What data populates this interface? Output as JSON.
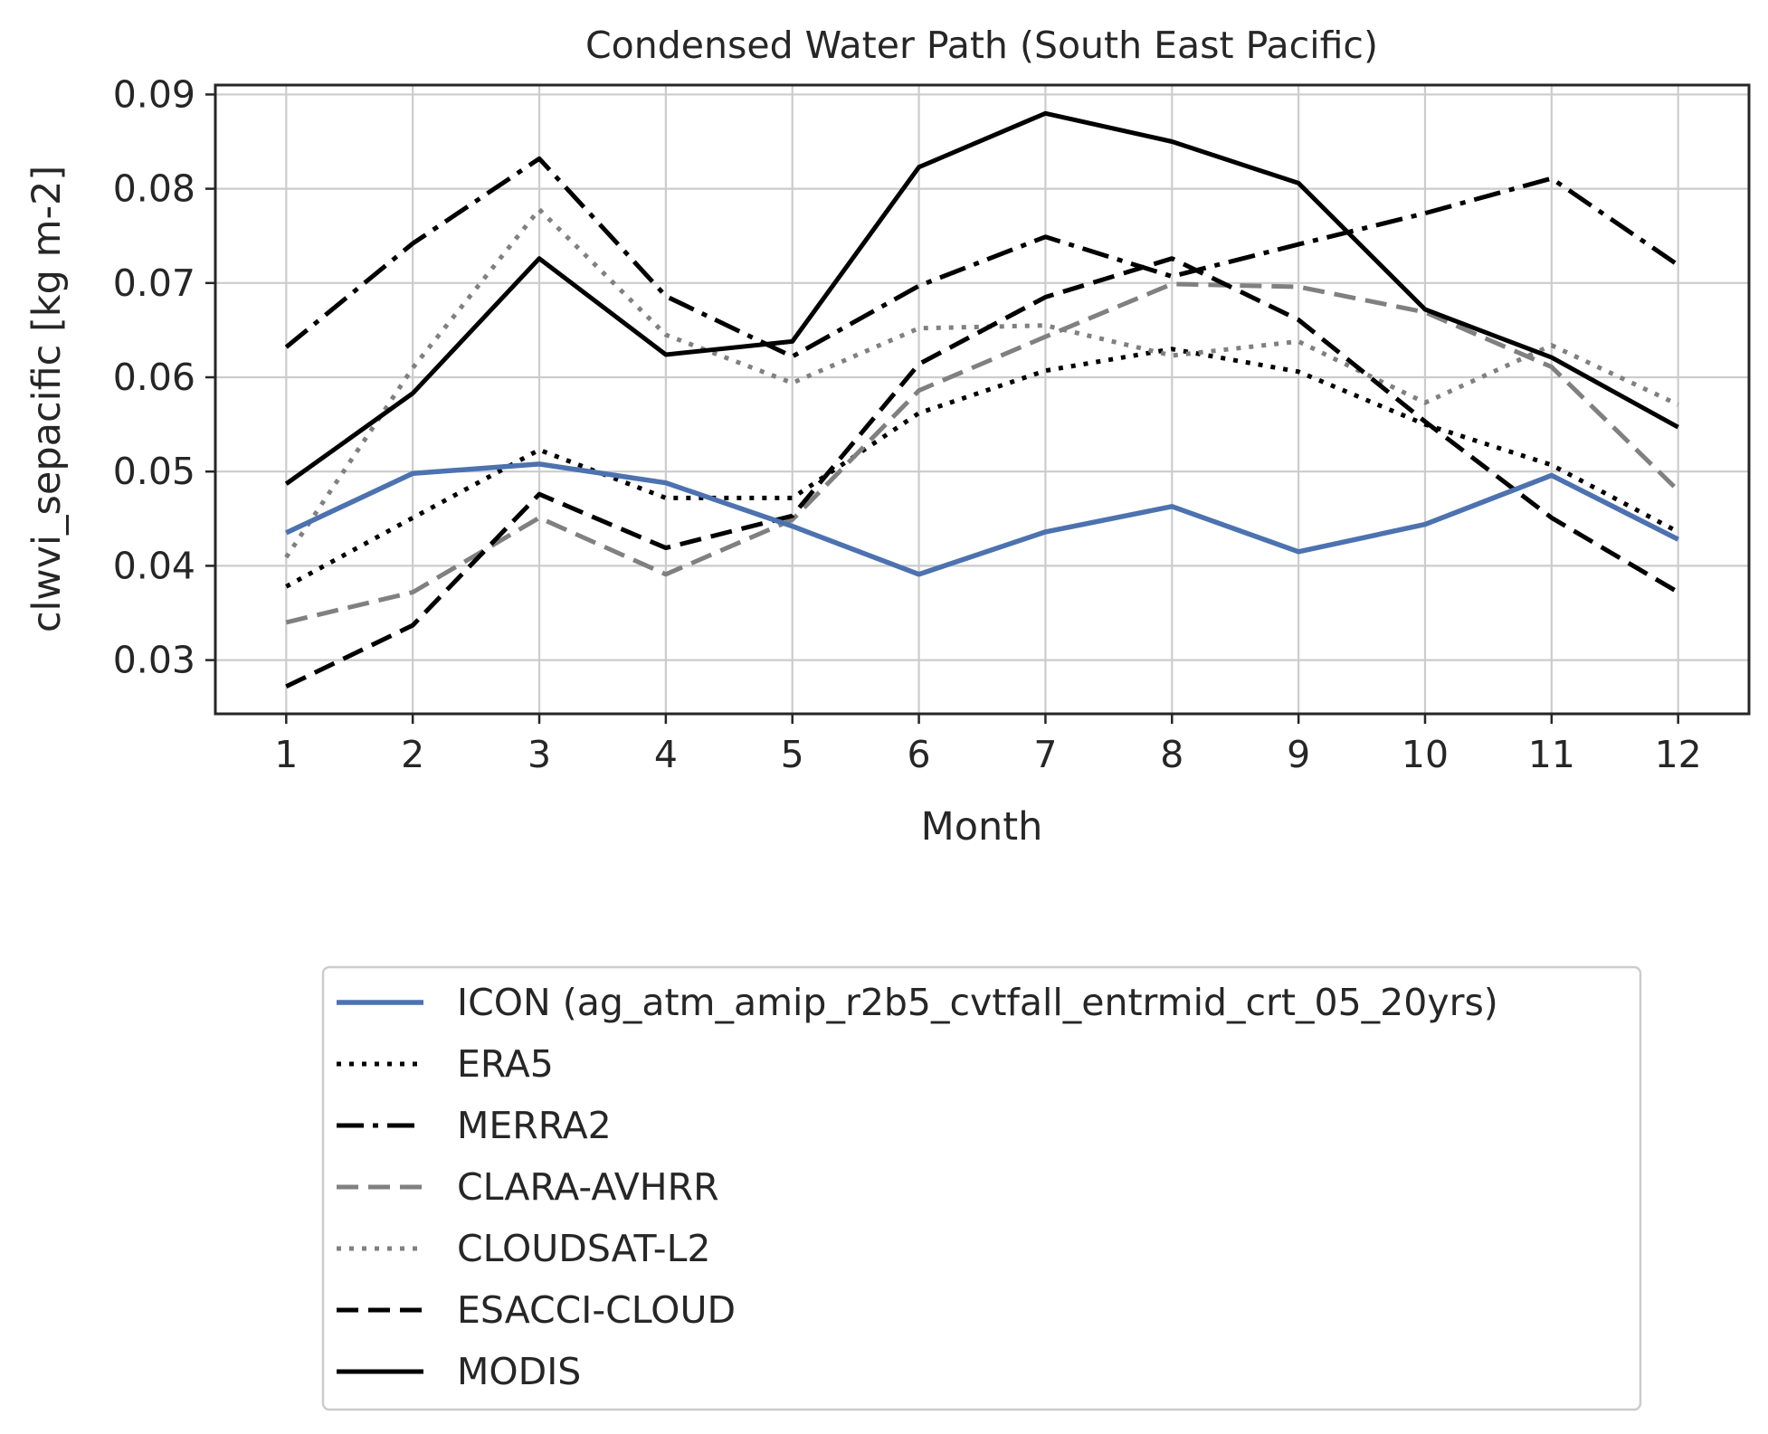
{
  "chart_data": {
    "type": "line",
    "title": "Condensed Water Path (South East Pacific)",
    "xlabel": "Month",
    "ylabel": "clwvi_sepacific [kg m-2]",
    "x": [
      1,
      2,
      3,
      4,
      5,
      6,
      7,
      8,
      9,
      10,
      11,
      12
    ],
    "xticks": [
      "1",
      "2",
      "3",
      "4",
      "5",
      "6",
      "7",
      "8",
      "9",
      "10",
      "11",
      "12"
    ],
    "yticks": [
      "0.03",
      "0.04",
      "0.05",
      "0.06",
      "0.07",
      "0.08",
      "0.09"
    ],
    "xlim": [
      0.44,
      12.56
    ],
    "ylim": [
      0.0243,
      0.091
    ],
    "grid": true,
    "legend_position": "below plot",
    "series": [
      {
        "name": "ICON (ag_atm_amip_r2b5_cvtfall_entrmid_crt_05_20yrs)",
        "color": "#4c72b0",
        "style": "solid",
        "width": 5.5,
        "values": [
          0.0435,
          0.0498,
          0.0508,
          0.0488,
          0.0442,
          0.0391,
          0.0436,
          0.0463,
          0.0415,
          0.0444,
          0.0496,
          0.0428
        ]
      },
      {
        "name": "ERA5",
        "color": "#000000",
        "style": "dotted",
        "width": 5,
        "values": [
          0.0378,
          0.0451,
          0.0523,
          0.0472,
          0.0472,
          0.0562,
          0.0607,
          0.063,
          0.0606,
          0.055,
          0.0507,
          0.0436
        ]
      },
      {
        "name": "MERRA2",
        "color": "#000000",
        "style": "dashdot",
        "width": 5,
        "values": [
          0.0632,
          0.0742,
          0.0832,
          0.0686,
          0.0622,
          0.0697,
          0.0749,
          0.0707,
          0.0741,
          0.0774,
          0.0811,
          0.0719
        ]
      },
      {
        "name": "CLARA-AVHRR",
        "color": "#808080",
        "style": "dashed",
        "width": 5,
        "values": [
          0.034,
          0.0372,
          0.0451,
          0.0391,
          0.0449,
          0.0586,
          0.0643,
          0.0699,
          0.0696,
          0.0669,
          0.0611,
          0.048
        ]
      },
      {
        "name": "CLOUDSAT-L2",
        "color": "#808080",
        "style": "dotted",
        "width": 5,
        "values": [
          0.0409,
          0.061,
          0.0778,
          0.0645,
          0.0594,
          0.0652,
          0.0655,
          0.0623,
          0.0638,
          0.0573,
          0.0634,
          0.0571
        ]
      },
      {
        "name": "ESACCI-CLOUD",
        "color": "#000000",
        "style": "dashed",
        "width": 5,
        "values": [
          0.0272,
          0.0337,
          0.0476,
          0.0419,
          0.0453,
          0.0614,
          0.0685,
          0.0726,
          0.0661,
          0.0553,
          0.0451,
          0.0372
        ]
      },
      {
        "name": "MODIS",
        "color": "#000000",
        "style": "solid",
        "width": 5,
        "values": [
          0.0487,
          0.0583,
          0.0726,
          0.0624,
          0.0638,
          0.0823,
          0.088,
          0.085,
          0.0806,
          0.0672,
          0.0621,
          0.0547
        ]
      }
    ]
  }
}
